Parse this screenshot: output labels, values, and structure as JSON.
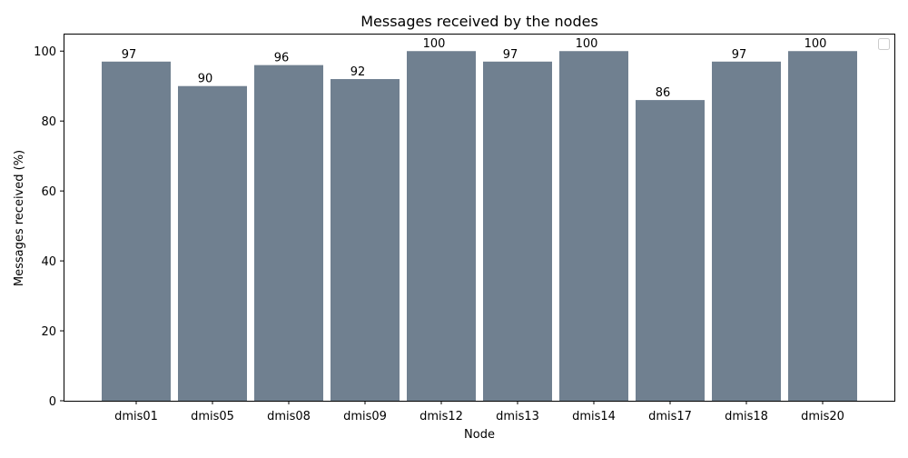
{
  "chart_data": {
    "type": "bar",
    "title": "Messages received by the nodes",
    "xlabel": "Node",
    "ylabel": "Messages received (%)",
    "categories": [
      "dmis01",
      "dmis05",
      "dmis08",
      "dmis09",
      "dmis12",
      "dmis13",
      "dmis14",
      "dmis17",
      "dmis18",
      "dmis20"
    ],
    "values": [
      97,
      90,
      96,
      92,
      100,
      97,
      100,
      86,
      97,
      100
    ],
    "ylim": [
      0,
      105
    ],
    "yticks": [
      0,
      20,
      40,
      60,
      80,
      100
    ],
    "bar_color": "#708090",
    "grid": false,
    "legend": "upper right, empty"
  }
}
